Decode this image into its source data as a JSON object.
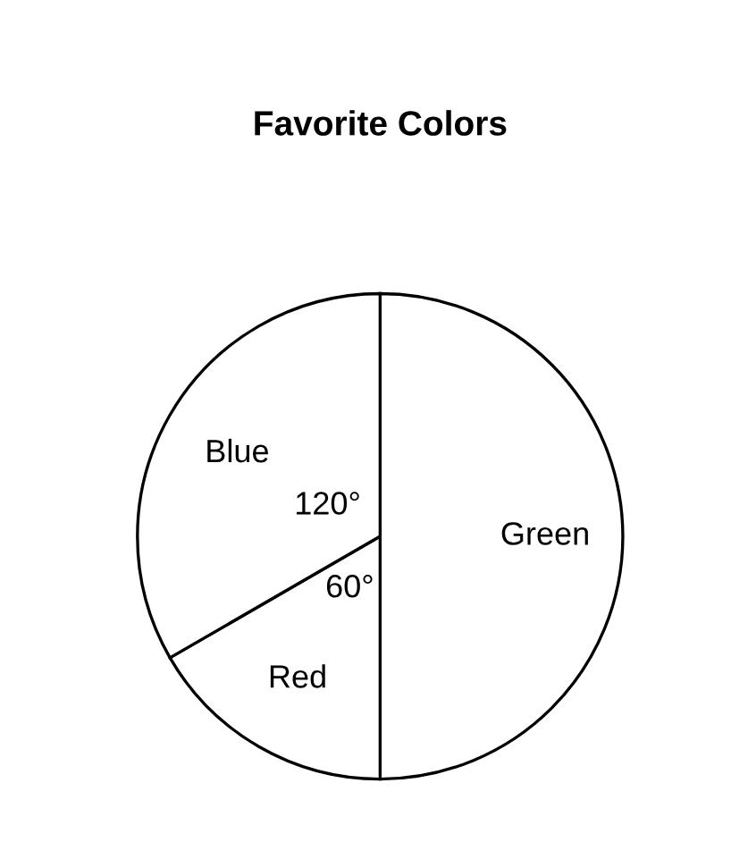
{
  "chart_data": {
    "type": "pie",
    "title": "Favorite Colors",
    "categories": [
      "Green",
      "Red",
      "Blue"
    ],
    "values": [
      180,
      60,
      120
    ],
    "value_labels": [
      null,
      "60°",
      "120°"
    ],
    "colors": [
      "#ffffff",
      "#ffffff",
      "#ffffff"
    ],
    "legend": false
  }
}
